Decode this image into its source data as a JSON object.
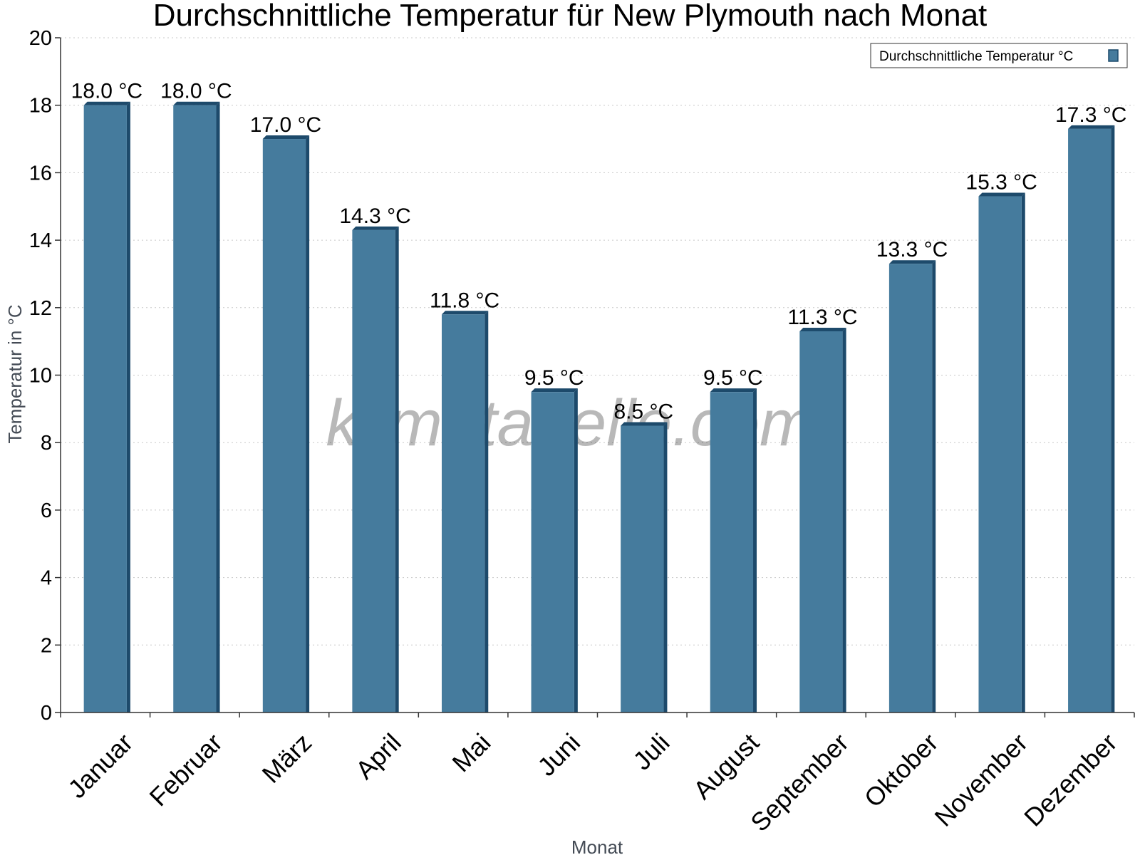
{
  "chart_data": {
    "type": "bar",
    "title": "Durchschnittliche Temperatur für New Plymouth nach Monat",
    "xlabel": "Monat",
    "ylabel": "Temperatur in °C",
    "categories": [
      "Januar",
      "Februar",
      "März",
      "April",
      "Mai",
      "Juni",
      "Juli",
      "August",
      "September",
      "Oktober",
      "November",
      "Dezember"
    ],
    "series": [
      {
        "name": "Durchschnittliche Temperatur °C",
        "values": [
          18.0,
          18.0,
          17.0,
          14.3,
          11.8,
          9.5,
          8.5,
          9.5,
          11.3,
          13.3,
          15.3,
          17.3
        ],
        "labels": [
          "18.0 °C",
          "18.0 °C",
          "17.0 °C",
          "14.3 °C",
          "11.8 °C",
          "9.5 °C",
          "8.5 °C",
          "9.5 °C",
          "11.3 °C",
          "13.3 °C",
          "15.3 °C",
          "17.3 °C"
        ],
        "color": "#457b9d",
        "shade_color": "#1d4a6b"
      }
    ],
    "y_ticks": [
      "0",
      "2",
      "4",
      "6",
      "8",
      "10",
      "12",
      "14",
      "16",
      "18",
      "20"
    ],
    "ylim": [
      0,
      20
    ],
    "grid": true,
    "legend_position": "top-right",
    "watermark": "klimatabelle.com"
  }
}
